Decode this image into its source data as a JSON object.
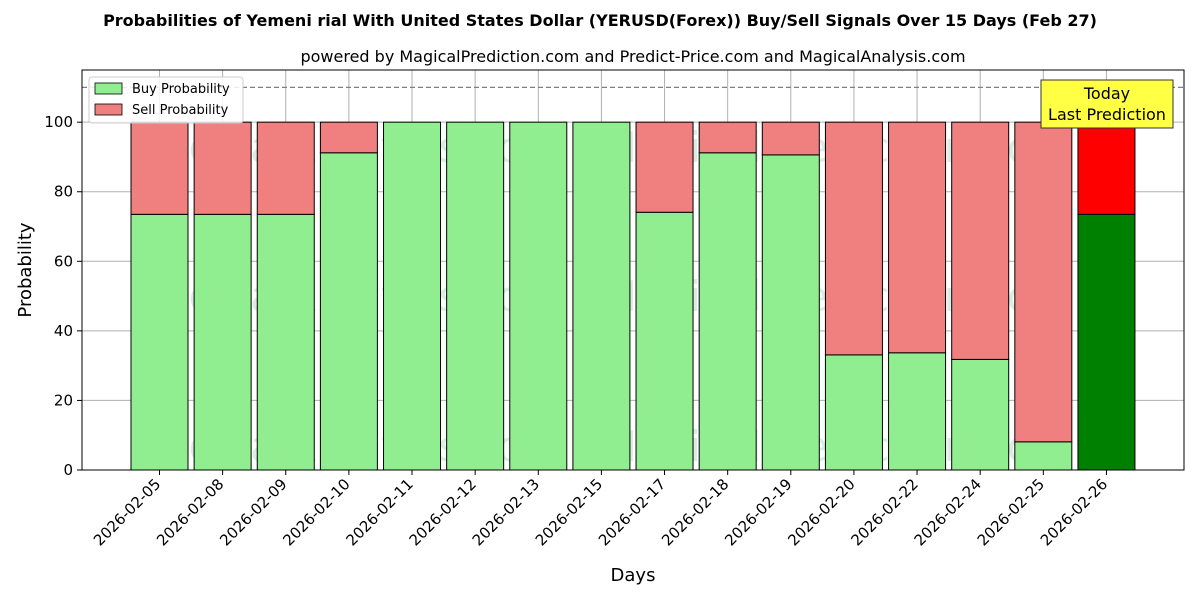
{
  "chart_data": {
    "type": "bar",
    "stacked": true,
    "title": "Probabilities of Yemeni rial With United States Dollar (YERUSD(Forex)) Buy/Sell Signals Over 15 Days (Feb 27)",
    "subtitle": "powered by MagicalPrediction.com and Predict-Price.com and MagicalAnalysis.com",
    "xlabel": "Days",
    "ylabel": "Probability",
    "ylim": [
      0,
      115
    ],
    "yticks": [
      0,
      20,
      40,
      60,
      80,
      100
    ],
    "reference_line": 110,
    "grid": true,
    "legend_position": "top-left",
    "categories": [
      "2026-02-05",
      "2026-02-08",
      "2026-02-09",
      "2026-02-10",
      "2026-02-11",
      "2026-02-12",
      "2026-02-13",
      "2026-02-15",
      "2026-02-17",
      "2026-02-18",
      "2026-02-19",
      "2026-02-20",
      "2026-02-22",
      "2026-02-24",
      "2026-02-25",
      "2026-02-26"
    ],
    "series": [
      {
        "name": "Buy Probability",
        "color": "#90ee90",
        "values": [
          73.5,
          73.5,
          73.5,
          91.2,
          100,
          100,
          100,
          100,
          74.1,
          91.2,
          90.6,
          33.1,
          33.7,
          31.8,
          8.1,
          73.5
        ]
      },
      {
        "name": "Sell Probability",
        "color": "#f08080",
        "values": [
          26.5,
          26.5,
          26.5,
          8.8,
          0,
          0,
          0,
          0,
          25.9,
          8.8,
          9.4,
          66.9,
          66.3,
          68.2,
          91.9,
          26.5
        ]
      }
    ],
    "highlight": {
      "index": 15,
      "buy_color": "#008000",
      "sell_color": "#ff0000"
    },
    "annotation": {
      "lines": [
        "Today",
        "Last Prediction"
      ],
      "background": "#ffff44"
    },
    "watermarks": [
      "MagicalAnalysis.com",
      "MagicalPrediction.com"
    ]
  }
}
